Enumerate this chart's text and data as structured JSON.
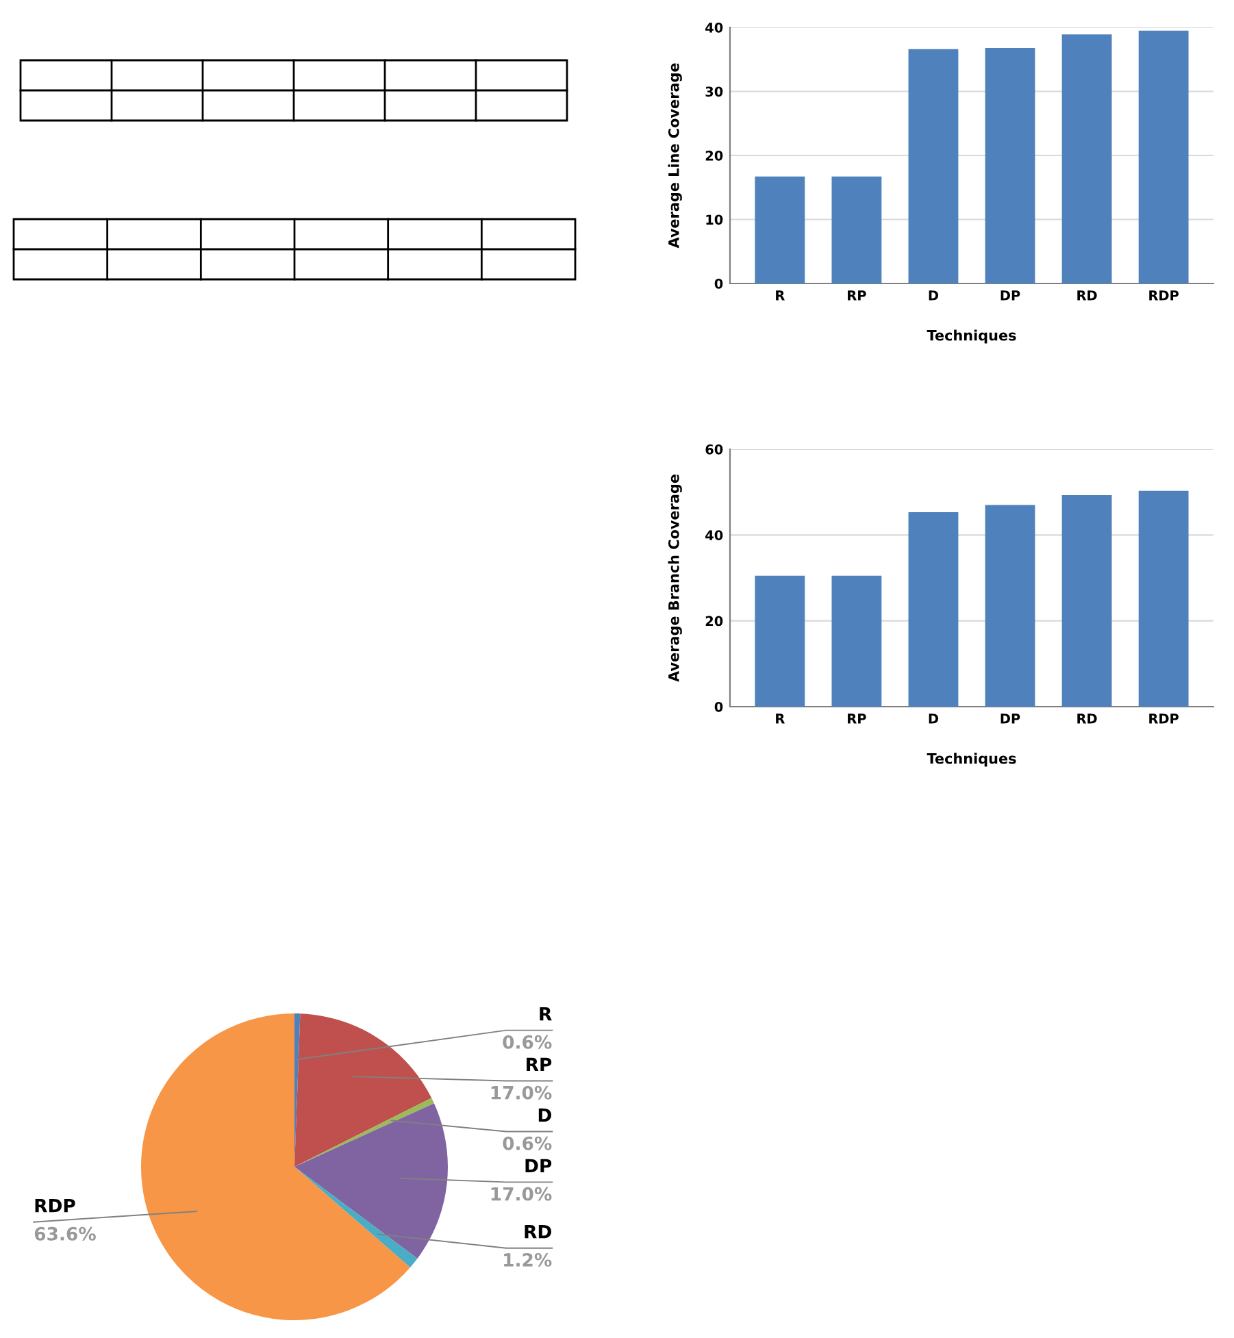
{
  "chart_data": [
    {
      "type": "bar",
      "xlabel": "Techniques",
      "ylabel": "Average Line Coverage",
      "categories": [
        "R",
        "RP",
        "D",
        "DP",
        "RD",
        "RDP"
      ],
      "values": [
        16.7,
        16.7,
        36.6,
        36.8,
        38.9,
        39.5
      ],
      "color": "#4f81bd",
      "ylim": [
        0,
        40
      ],
      "yticks": [
        0,
        10,
        20,
        30,
        40
      ],
      "grid": "y",
      "legend": false
    },
    {
      "type": "bar",
      "xlabel": "Techniques",
      "ylabel": "Average Branch Coverage",
      "categories": [
        "R",
        "RP",
        "D",
        "DP",
        "RD",
        "RDP"
      ],
      "values": [
        30.5,
        30.5,
        45.3,
        47.0,
        49.3,
        50.3
      ],
      "color": "#4f81bd",
      "ylim": [
        0,
        60
      ],
      "yticks": [
        0,
        20,
        40,
        60
      ],
      "grid": "y",
      "legend": false
    },
    {
      "type": "pie",
      "categories": [
        "R",
        "RP",
        "D",
        "DP",
        "RD",
        "RDP"
      ],
      "values": [
        0.6,
        17.0,
        0.6,
        17.0,
        1.2,
        63.6
      ],
      "value_labels": [
        "0.6%",
        "17.0%",
        "0.6%",
        "17.0%",
        "1.2%",
        "63.6%"
      ],
      "colors": [
        "#4f81bd",
        "#c0504d",
        "#9bbb59",
        "#8064a2",
        "#4bacc6",
        "#f79646"
      ],
      "legend": false
    }
  ]
}
